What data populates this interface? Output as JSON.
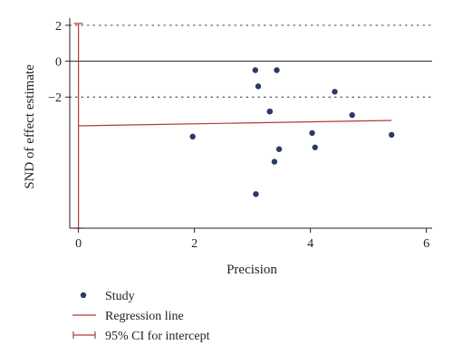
{
  "colors": {
    "point": "#2b3a67",
    "regression": "#b03a3a",
    "ci": "#b03a3a",
    "axis": "#222222",
    "zero_line": "#222222",
    "dotted": "#555555"
  },
  "chart_data": {
    "type": "scatter",
    "xlabel": "Precision",
    "ylabel": "SND of effect estimate",
    "xlim": [
      -0.15,
      6.1
    ],
    "ylim": [
      -9.3,
      2.4
    ],
    "x_ticks": [
      0,
      2,
      4,
      6
    ],
    "x_tick_labels": [
      "0",
      "2",
      "4",
      "6"
    ],
    "y_ticks": [
      2,
      0,
      -2
    ],
    "y_tick_labels": [
      "2",
      "0",
      "−2"
    ],
    "dotted_lines_y": [
      2,
      -2
    ],
    "zero_line_y": 0,
    "grid": false,
    "legend_position": "bottom-left",
    "series": [
      {
        "name": "Study",
        "marker": "point-icon",
        "x": [
          3.05,
          3.1,
          3.3,
          3.42,
          4.42,
          3.3,
          4.03,
          4.72,
          5.4,
          1.97,
          4.08,
          3.46,
          3.38,
          3.06
        ],
        "y": [
          -0.5,
          -1.4,
          -2.8,
          -0.5,
          -1.7,
          -2.8,
          -4.0,
          -3.0,
          -4.1,
          -4.2,
          -4.8,
          -4.9,
          -5.6,
          -7.4
        ]
      }
    ],
    "regression_line": {
      "name": "Regression line",
      "x": [
        0,
        5.4
      ],
      "y": [
        -3.6,
        -3.3
      ]
    },
    "ci_intercept": {
      "name": "95% CI for intercept",
      "x": 0,
      "lower": -9.3,
      "upper": 2.1
    }
  }
}
